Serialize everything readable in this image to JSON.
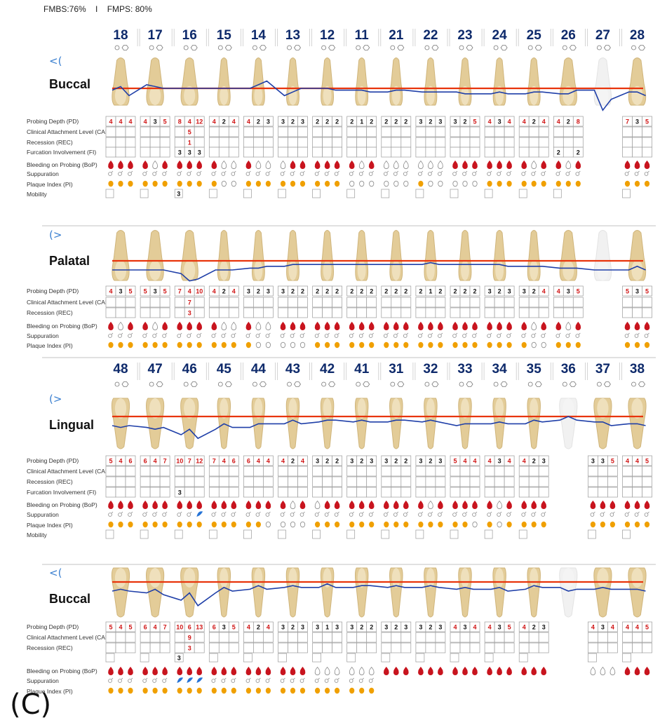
{
  "header": {
    "fmbs": "FMBS:76%",
    "sep": "I",
    "fmps": "FMPS: 80%"
  },
  "caption": "(C)",
  "colors": {
    "tooth_number": "#0e2a6b",
    "gingival_line": "#e8340c",
    "probing_line": "#1f3fa8",
    "bleeding": "#c8141e",
    "plaque": "#f0a000",
    "suppuration_blue": "#2673d6",
    "red_value": "#d01515",
    "grid": "#9a9a9a"
  },
  "legend": {
    "pd": "Probing Depth (PD)",
    "cal": "Clinical Attachment Level (CAL)",
    "rec": "Recession (REC)",
    "fi": "Furcation Involvement (FI)",
    "bop": "Bleeding on Probing (BoP)",
    "sup": "Suppuration",
    "pi": "Plaque Index (PI)",
    "mob": "Mobility"
  },
  "upper_teeth": [
    "18",
    "17",
    "16",
    "15",
    "14",
    "13",
    "12",
    "11",
    "21",
    "22",
    "23",
    "24",
    "25",
    "26",
    "27",
    "28"
  ],
  "lower_teeth": [
    "48",
    "47",
    "46",
    "45",
    "44",
    "43",
    "42",
    "41",
    "31",
    "32",
    "33",
    "34",
    "35",
    "36",
    "37",
    "38"
  ],
  "sections": [
    {
      "id": "upper-buccal",
      "label": "Buccal",
      "arrow": "<(",
      "jaw": "upper",
      "rows": [
        "pd",
        "cal",
        "rec",
        "fi",
        "bop",
        "sup",
        "pi",
        "mob"
      ],
      "missing": [
        14
      ],
      "pd": [
        [
          "4",
          "4",
          "4"
        ],
        [
          "4",
          "3",
          "5"
        ],
        [
          "8",
          "4",
          "12"
        ],
        [
          "4",
          "2",
          "4"
        ],
        [
          "4",
          "2",
          "3"
        ],
        [
          "3",
          "2",
          "3"
        ],
        [
          "2",
          "2",
          "2"
        ],
        [
          "2",
          "1",
          "2"
        ],
        [
          "2",
          "2",
          "2"
        ],
        [
          "3",
          "2",
          "3"
        ],
        [
          "3",
          "2",
          "5"
        ],
        [
          "4",
          "3",
          "4"
        ],
        [
          "4",
          "2",
          "4"
        ],
        [
          "4",
          "2",
          "8"
        ],
        null,
        [
          "7",
          "3",
          "5"
        ]
      ],
      "cal": [
        null,
        null,
        [
          "",
          "5",
          ""
        ],
        null,
        null,
        null,
        null,
        null,
        null,
        null,
        null,
        null,
        null,
        null,
        null,
        null
      ],
      "rec": [
        null,
        null,
        [
          "",
          "1",
          ""
        ],
        null,
        null,
        null,
        null,
        null,
        null,
        null,
        null,
        null,
        null,
        null,
        null,
        null
      ],
      "fi": [
        null,
        null,
        [
          "3",
          "3",
          "3"
        ],
        null,
        null,
        null,
        null,
        null,
        null,
        null,
        null,
        null,
        null,
        [
          "2",
          "",
          "2"
        ],
        null,
        null
      ],
      "bop": [
        "rrr",
        "rgr",
        "rrr",
        "rgg",
        "rgg",
        "grr",
        "rrr",
        "rgr",
        "ggg",
        "ggg",
        "rrr",
        "rrr",
        "rgr",
        "rgr",
        null,
        "rrr"
      ],
      "sup": [
        "ggg",
        "ggg",
        "ggg",
        "ggg",
        "ggg",
        "ggg",
        "ggg",
        "ggg",
        "ggg",
        "ggg",
        "ggg",
        "ggg",
        "ggg",
        "ggg",
        null,
        "ggg"
      ],
      "pi": [
        "ooo",
        "ooo",
        "ooo",
        "ogg",
        "ooo",
        "ooo",
        "ooo",
        "ggg",
        "ggg",
        "ogg",
        "ggg",
        "ooo",
        "ooo",
        "ooo",
        null,
        "ooo"
      ],
      "mob": [
        "",
        "",
        "3",
        "",
        "",
        "",
        "",
        "",
        "",
        "",
        "",
        "",
        "",
        "",
        null,
        ""
      ]
    },
    {
      "id": "upper-palatal",
      "label": "Palatal",
      "arrow": "(>",
      "jaw": "upper",
      "rows": [
        "pd",
        "cal",
        "rec",
        "bop",
        "sup",
        "pi"
      ],
      "missing": [
        14
      ],
      "pd": [
        [
          "4",
          "3",
          "5"
        ],
        [
          "5",
          "3",
          "5"
        ],
        [
          "7",
          "4",
          "10"
        ],
        [
          "4",
          "2",
          "4"
        ],
        [
          "3",
          "2",
          "3"
        ],
        [
          "3",
          "2",
          "2"
        ],
        [
          "2",
          "2",
          "2"
        ],
        [
          "2",
          "2",
          "2"
        ],
        [
          "2",
          "2",
          "2"
        ],
        [
          "2",
          "1",
          "2"
        ],
        [
          "2",
          "2",
          "2"
        ],
        [
          "3",
          "2",
          "3"
        ],
        [
          "3",
          "2",
          "4"
        ],
        [
          "4",
          "3",
          "5"
        ],
        null,
        [
          "5",
          "3",
          "5"
        ]
      ],
      "cal": [
        null,
        null,
        [
          "",
          "7",
          ""
        ],
        null,
        null,
        null,
        null,
        null,
        null,
        null,
        null,
        null,
        null,
        null,
        null,
        null
      ],
      "rec": [
        null,
        null,
        [
          "",
          "3",
          ""
        ],
        null,
        null,
        null,
        null,
        null,
        null,
        null,
        null,
        null,
        null,
        null,
        null,
        null
      ],
      "bop": [
        "rgr",
        "rgr",
        "rrr",
        "rgg",
        "rgg",
        "rrr",
        "rrr",
        "rrr",
        "rrr",
        "rrr",
        "rrr",
        "rrr",
        "rgr",
        "rgr",
        null,
        "rrr"
      ],
      "sup": [
        "ggg",
        "ggg",
        "ggg",
        "ggg",
        "ggg",
        "ggg",
        "ggg",
        "ggg",
        "ggg",
        "ggg",
        "ggg",
        "ggg",
        "ggg",
        "ggg",
        null,
        "ggg"
      ],
      "pi": [
        "ooo",
        "ooo",
        "ooo",
        "ooo",
        "ogg",
        "ggg",
        "ooo",
        "ooo",
        "ooo",
        "ooo",
        "ooo",
        "ooo",
        "ogg",
        "ooo",
        null,
        "ooo"
      ]
    },
    {
      "id": "lower-lingual",
      "label": "Lingual",
      "arrow": "(>",
      "jaw": "lower",
      "rows": [
        "pd",
        "cal",
        "rec",
        "fi",
        "bop",
        "sup",
        "pi",
        "mob"
      ],
      "missing": [
        13
      ],
      "pd": [
        [
          "5",
          "4",
          "6"
        ],
        [
          "6",
          "4",
          "7"
        ],
        [
          "10",
          "7",
          "12"
        ],
        [
          "7",
          "4",
          "6"
        ],
        [
          "6",
          "4",
          "4"
        ],
        [
          "4",
          "2",
          "4"
        ],
        [
          "3",
          "2",
          "2"
        ],
        [
          "3",
          "2",
          "3"
        ],
        [
          "3",
          "2",
          "2"
        ],
        [
          "3",
          "2",
          "3"
        ],
        [
          "5",
          "4",
          "4"
        ],
        [
          "4",
          "3",
          "4"
        ],
        [
          "4",
          "2",
          "3"
        ],
        null,
        [
          "3",
          "3",
          "5"
        ],
        [
          "4",
          "4",
          "5"
        ]
      ],
      "cal": [
        null,
        null,
        null,
        null,
        null,
        null,
        null,
        null,
        null,
        null,
        null,
        null,
        null,
        null,
        null,
        null
      ],
      "rec": [
        null,
        null,
        null,
        null,
        null,
        null,
        null,
        null,
        null,
        null,
        null,
        null,
        null,
        null,
        null,
        null
      ],
      "fi": [
        null,
        null,
        [
          "3",
          "",
          ""
        ],
        null,
        null,
        null,
        null,
        null,
        null,
        null,
        null,
        null,
        null,
        null,
        null,
        null
      ],
      "bop": [
        "rrr",
        "rrr",
        "rrr",
        "rrr",
        "rrr",
        "rgr",
        "grr",
        "rrr",
        "rrr",
        "rgr",
        "rrr",
        "rgr",
        "rrr",
        null,
        "rrr",
        "rrr"
      ],
      "sup": [
        "ggg",
        "ggg",
        "ggb",
        "ggg",
        "ggg",
        "ggg",
        "ggg",
        "ggg",
        "ggg",
        "ggg",
        "ggg",
        "ggg",
        "ggg",
        null,
        "ggg",
        "ggg"
      ],
      "pi": [
        "ooo",
        "ooo",
        "ooo",
        "ooo",
        "oog",
        "ggg",
        "ooo",
        "ooo",
        "ooo",
        "ooo",
        "oog",
        "ogo",
        "ooo",
        null,
        "ooo",
        "ooo"
      ],
      "mob": [
        "",
        "",
        "",
        "",
        "",
        "",
        "",
        "",
        "",
        "",
        "",
        "",
        "",
        null,
        "",
        ""
      ]
    },
    {
      "id": "lower-buccal",
      "label": "Buccal",
      "arrow": "<(",
      "jaw": "lower",
      "rows": [
        "pd",
        "cal",
        "rec",
        "bop",
        "sup",
        "pi"
      ],
      "missing": [
        13
      ],
      "pd": [
        [
          "5",
          "4",
          "5"
        ],
        [
          "6",
          "4",
          "7"
        ],
        [
          "10",
          "6",
          "13"
        ],
        [
          "6",
          "3",
          "5"
        ],
        [
          "4",
          "2",
          "4"
        ],
        [
          "3",
          "2",
          "3"
        ],
        [
          "3",
          "1",
          "3"
        ],
        [
          "3",
          "2",
          "2"
        ],
        [
          "3",
          "2",
          "3"
        ],
        [
          "3",
          "2",
          "3"
        ],
        [
          "4",
          "3",
          "4"
        ],
        [
          "4",
          "3",
          "5"
        ],
        [
          "4",
          "2",
          "3"
        ],
        null,
        [
          "4",
          "3",
          "4"
        ],
        [
          "4",
          "4",
          "5"
        ]
      ],
      "cal": [
        null,
        null,
        [
          "",
          "9",
          ""
        ],
        null,
        null,
        null,
        null,
        null,
        null,
        null,
        null,
        null,
        null,
        null,
        null,
        null
      ],
      "rec": [
        null,
        null,
        [
          "",
          "3",
          ""
        ],
        null,
        null,
        null,
        null,
        null,
        null,
        null,
        null,
        null,
        null,
        null,
        null,
        null
      ],
      "extra": [
        null,
        null,
        "3",
        null,
        null,
        null,
        null,
        null,
        null,
        null,
        null,
        null,
        null,
        null,
        null,
        null
      ],
      "bop": [
        "rrr",
        "rrr",
        "rrr",
        "rrr",
        "rrr",
        "rrr",
        "ggg",
        "ggg",
        "rrr",
        "rrr",
        "rrr",
        "rrr",
        "rrr",
        null,
        "ggg",
        "rrr"
      ],
      "sup": [
        "ggg",
        "ggg",
        "bbb",
        "ggg",
        "ggg",
        "ggg",
        "ggg",
        "ggg",
        null,
        null,
        null,
        null,
        null,
        null,
        null,
        null
      ],
      "pi": [
        "ooo",
        "ooo",
        "ooo",
        "ooo",
        "ooo",
        "ooo",
        "ooo",
        "ooo",
        null,
        null,
        null,
        null,
        null,
        null,
        null,
        null
      ]
    }
  ]
}
